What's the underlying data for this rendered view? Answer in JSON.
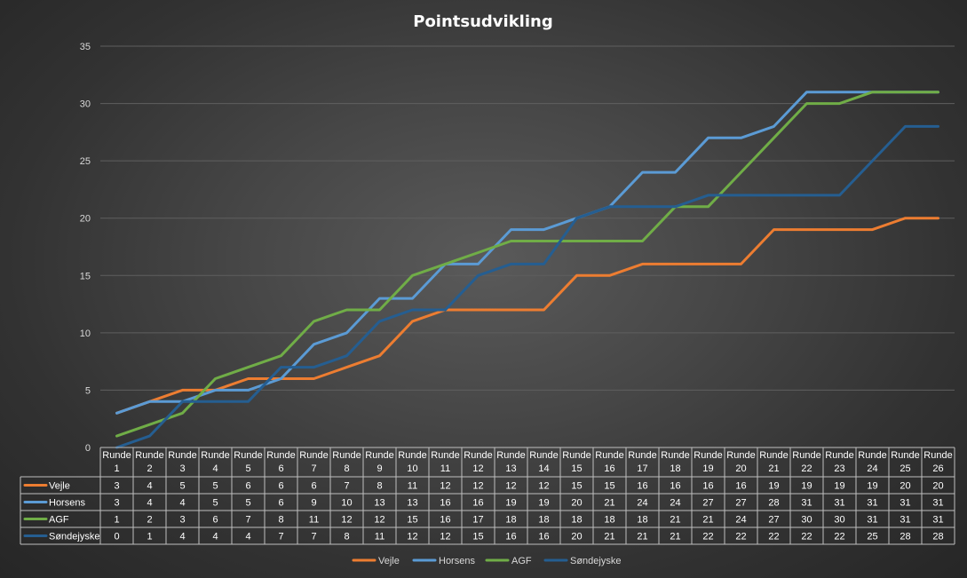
{
  "chart_data": {
    "type": "line",
    "title": "Pointsudvikling",
    "categories": [
      "Runde 1",
      "Runde 2",
      "Runde 3",
      "Runde 4",
      "Runde 5",
      "Runde 6",
      "Runde 7",
      "Runde 8",
      "Runde 9",
      "Runde 10",
      "Runde 11",
      "Runde 12",
      "Runde 13",
      "Runde 14",
      "Runde 15",
      "Runde 16",
      "Runde 17",
      "Runde 18",
      "Runde 19",
      "Runde 20",
      "Runde 21",
      "Runde 22",
      "Runde 23",
      "Runde 24",
      "Runde 25",
      "Runde 26"
    ],
    "category_label_word": "Runde",
    "category_numbers": [
      "1",
      "2",
      "3",
      "4",
      "5",
      "6",
      "7",
      "8",
      "9",
      "10",
      "11",
      "12",
      "13",
      "14",
      "15",
      "16",
      "17",
      "18",
      "19",
      "20",
      "21",
      "22",
      "23",
      "24",
      "25",
      "26"
    ],
    "ylim": [
      0,
      35
    ],
    "yticks": [
      0,
      5,
      10,
      15,
      20,
      25,
      30,
      35
    ],
    "grid": true,
    "legend": "bottom",
    "data_table": true,
    "series": [
      {
        "name": "Vejle",
        "color": "#ed7d31",
        "values": [
          3,
          4,
          5,
          5,
          6,
          6,
          6,
          7,
          8,
          11,
          12,
          12,
          12,
          12,
          15,
          15,
          16,
          16,
          16,
          16,
          19,
          19,
          19,
          19,
          20,
          20
        ]
      },
      {
        "name": "Horsens",
        "color": "#5b9bd5",
        "values": [
          3,
          4,
          4,
          5,
          5,
          6,
          9,
          10,
          13,
          13,
          16,
          16,
          19,
          19,
          20,
          21,
          24,
          24,
          27,
          27,
          28,
          31,
          31,
          31,
          31,
          31
        ]
      },
      {
        "name": "AGF",
        "color": "#70ad47",
        "values": [
          1,
          2,
          3,
          6,
          7,
          8,
          11,
          12,
          12,
          15,
          16,
          17,
          18,
          18,
          18,
          18,
          18,
          21,
          21,
          24,
          27,
          30,
          30,
          31,
          31,
          31
        ]
      },
      {
        "name": "Søndejyske",
        "color": "#255e91",
        "values": [
          0,
          1,
          4,
          4,
          4,
          7,
          7,
          8,
          11,
          12,
          12,
          15,
          16,
          16,
          20,
          21,
          21,
          21,
          22,
          22,
          22,
          22,
          22,
          25,
          28,
          28
        ]
      }
    ]
  }
}
